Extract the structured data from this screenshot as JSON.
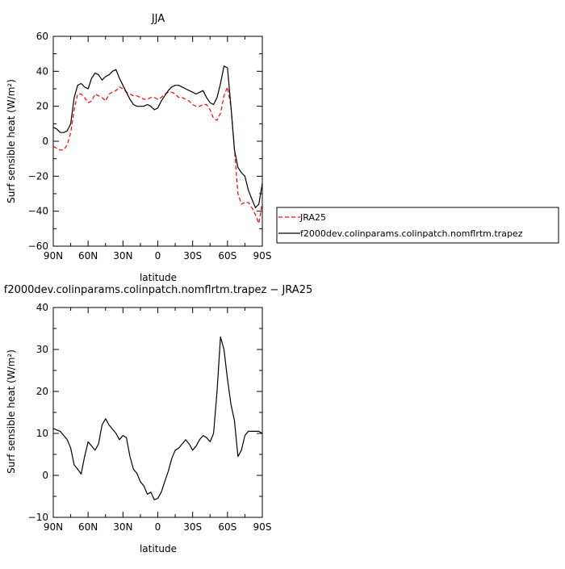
{
  "chart_data": [
    {
      "type": "line",
      "title": "JJA",
      "xlabel": "latitude",
      "ylabel": "Surf sensible heat (W/m²)",
      "xlim": [
        90,
        -90
      ],
      "ylim": [
        -60,
        60
      ],
      "xticks": [
        90,
        60,
        30,
        0,
        -30,
        -60,
        -90
      ],
      "xtick_labels": [
        "90N",
        "60N",
        "30N",
        "0",
        "30S",
        "60S",
        "90S"
      ],
      "yticks": [
        -60,
        -40,
        -20,
        0,
        20,
        40,
        60
      ],
      "ytick_labels": [
        "−60",
        "−40",
        "−20",
        "0",
        "20",
        "40",
        "60"
      ],
      "legend_position": "right",
      "series": [
        {
          "name": "JRA25",
          "color": "#ff0000",
          "dash": "dashed",
          "x": [
            90,
            87,
            84,
            81,
            78,
            75,
            72,
            69,
            66,
            63,
            60,
            57,
            54,
            51,
            48,
            45,
            42,
            39,
            36,
            33,
            30,
            27,
            24,
            21,
            18,
            15,
            12,
            9,
            6,
            3,
            0,
            -3,
            -6,
            -9,
            -12,
            -15,
            -18,
            -21,
            -24,
            -27,
            -30,
            -33,
            -36,
            -39,
            -42,
            -45,
            -48,
            -51,
            -54,
            -57,
            -60,
            -63,
            -66,
            -69,
            -72,
            -75,
            -78,
            -81,
            -84,
            -87,
            -90
          ],
          "values": [
            -3,
            -4,
            -5,
            -5,
            -2,
            5,
            18,
            27,
            27,
            25,
            22,
            23,
            27,
            26,
            25,
            23,
            27,
            28,
            29,
            31,
            30,
            28,
            27,
            26,
            26,
            25,
            24,
            24,
            25,
            25,
            24,
            25,
            27,
            28,
            28,
            27,
            25,
            25,
            24,
            23,
            21,
            20,
            20,
            21,
            21,
            18,
            13,
            12,
            16,
            26,
            31,
            20,
            -5,
            -30,
            -36,
            -35,
            -35,
            -38,
            -42,
            -47,
            -35
          ]
        },
        {
          "name": "f2000dev.colinparams.colinpatch.nomflrtm.trapez",
          "color": "#000000",
          "dash": "solid",
          "x": [
            90,
            87,
            84,
            81,
            78,
            75,
            72,
            69,
            66,
            63,
            60,
            57,
            54,
            51,
            48,
            45,
            42,
            39,
            36,
            33,
            30,
            27,
            24,
            21,
            18,
            15,
            12,
            9,
            6,
            3,
            0,
            -3,
            -6,
            -9,
            -12,
            -15,
            -18,
            -21,
            -24,
            -27,
            -30,
            -33,
            -36,
            -39,
            -42,
            -45,
            -48,
            -51,
            -54,
            -57,
            -60,
            -63,
            -66,
            -69,
            -72,
            -75,
            -78,
            -81,
            -84,
            -87,
            -90
          ],
          "values": [
            8,
            7,
            5,
            5,
            6,
            10,
            25,
            32,
            33,
            31,
            30,
            36,
            39,
            38,
            35,
            37,
            38,
            40,
            41,
            36,
            32,
            28,
            24,
            21,
            20,
            20,
            20,
            21,
            20,
            18,
            19,
            23,
            26,
            29,
            31,
            32,
            32,
            31,
            30,
            29,
            28,
            27,
            28,
            29,
            25,
            22,
            21,
            25,
            33,
            43,
            42,
            20,
            -5,
            -15,
            -18,
            -20,
            -28,
            -33,
            -38,
            -36,
            -24
          ]
        }
      ]
    },
    {
      "type": "line",
      "title": "f2000dev.colinparams.colinpatch.nomflrtm.trapez − JRA25",
      "xlabel": "latitude",
      "ylabel": "Surf sensible heat (W/m²)",
      "xlim": [
        90,
        -90
      ],
      "ylim": [
        -10,
        40
      ],
      "xticks": [
        90,
        60,
        30,
        0,
        -30,
        -60,
        -90
      ],
      "xtick_labels": [
        "90N",
        "60N",
        "30N",
        "0",
        "30S",
        "60S",
        "90S"
      ],
      "yticks": [
        -10,
        0,
        10,
        20,
        30,
        40
      ],
      "ytick_labels": [
        "−10",
        "0",
        "10",
        "20",
        "30",
        "40"
      ],
      "series": [
        {
          "color": "#000000",
          "dash": "solid",
          "x": [
            90,
            87,
            84,
            81,
            78,
            75,
            72,
            69,
            66,
            63,
            60,
            57,
            54,
            51,
            48,
            45,
            42,
            39,
            36,
            33,
            30,
            27,
            24,
            21,
            18,
            15,
            12,
            9,
            6,
            3,
            0,
            -3,
            -6,
            -9,
            -12,
            -15,
            -18,
            -21,
            -24,
            -27,
            -30,
            -33,
            -36,
            -39,
            -42,
            -45,
            -48,
            -51,
            -54,
            -57,
            -60,
            -63,
            -66,
            -69,
            -72,
            -75,
            -78,
            -81,
            -84,
            -87,
            -90
          ],
          "values": [
            11.2,
            10.8,
            10.5,
            9.5,
            8.5,
            6.5,
            2.5,
            1.5,
            0.3,
            4.5,
            8,
            7,
            6,
            7.5,
            12,
            13.5,
            12,
            11,
            10,
            8.5,
            9.5,
            9,
            4.5,
            1.5,
            0.5,
            -1.5,
            -2.5,
            -4.5,
            -4,
            -5.8,
            -5.5,
            -4,
            -1.5,
            1,
            4,
            6,
            6.5,
            7.5,
            8.5,
            7.5,
            6,
            7,
            8.5,
            9.5,
            9,
            8,
            10,
            20,
            33,
            30,
            23,
            17,
            13,
            4.5,
            6,
            9.5,
            10.5,
            10.5,
            10.5,
            10.5,
            10
          ]
        }
      ]
    }
  ]
}
